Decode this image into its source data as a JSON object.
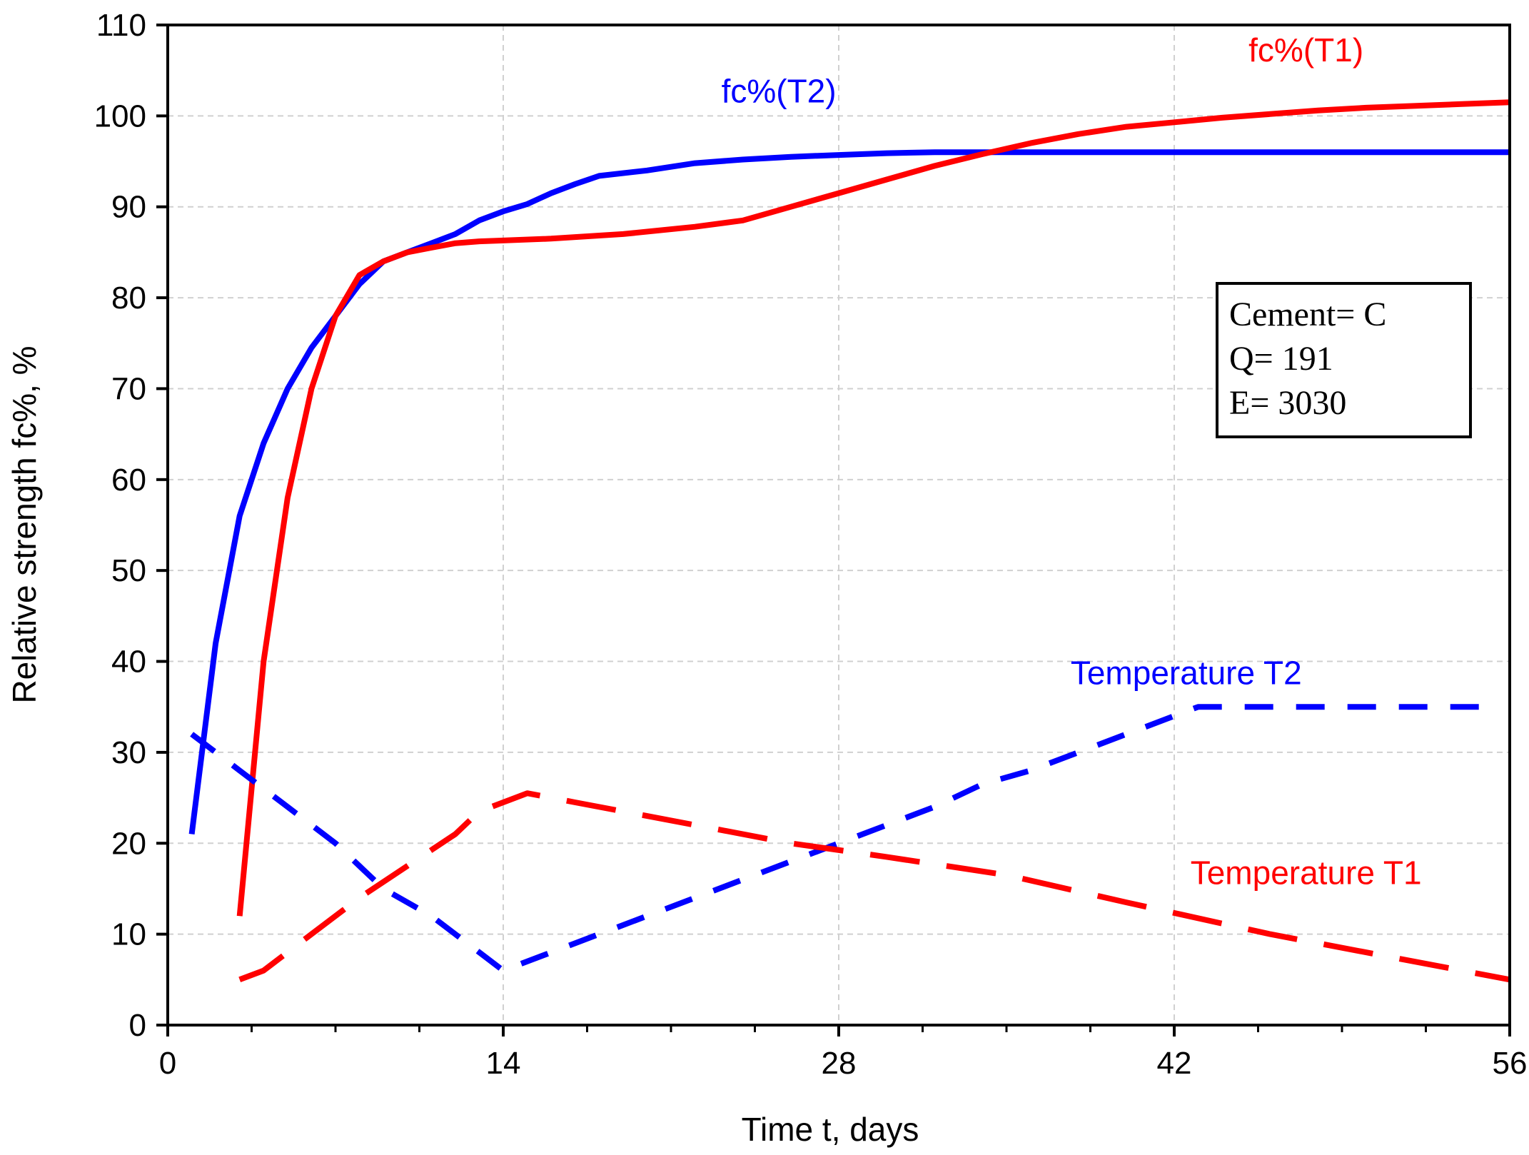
{
  "chart_data": {
    "type": "line",
    "title": "",
    "xlabel": "Time t, days",
    "ylabel": "Relative strength fc%, %",
    "xlim": [
      0,
      56
    ],
    "ylim": [
      0,
      110
    ],
    "x_ticks": [
      0,
      14,
      28,
      42,
      56
    ],
    "x_minor_step": 3.5,
    "y_ticks": [
      0,
      10,
      20,
      30,
      40,
      50,
      60,
      70,
      80,
      90,
      100,
      110
    ],
    "grid": true,
    "colors": {
      "blue": "#0000ff",
      "red": "#ff0000",
      "grid": "#d0d0d0",
      "axis": "#000000"
    },
    "series": [
      {
        "name": "fc%(T2)",
        "color": "#0000ff",
        "style": "solid",
        "x": [
          1,
          2,
          3,
          4,
          5,
          6,
          7,
          8,
          9,
          10,
          11,
          12,
          13,
          14,
          15,
          16,
          17,
          18,
          20,
          22,
          24,
          26,
          28,
          30,
          32,
          35,
          38,
          42,
          46,
          50,
          56
        ],
        "y": [
          21,
          42,
          56,
          64,
          70,
          74.5,
          78,
          81.5,
          84,
          85,
          86,
          87,
          88.5,
          89.5,
          90.3,
          91.5,
          92.5,
          93.4,
          94,
          94.8,
          95.2,
          95.5,
          95.7,
          95.9,
          96,
          96,
          96,
          96,
          96,
          96,
          96
        ]
      },
      {
        "name": "fc%(T1)",
        "color": "#ff0000",
        "style": "solid",
        "x": [
          3,
          4,
          5,
          6,
          7,
          8,
          9,
          10,
          11,
          12,
          13,
          14,
          16,
          19,
          22,
          24,
          26,
          28,
          30,
          32,
          34,
          36,
          38,
          40,
          42,
          44,
          46,
          48,
          50,
          52,
          54,
          56
        ],
        "y": [
          12,
          40,
          58,
          70,
          78,
          82.5,
          84,
          85,
          85.5,
          86,
          86.2,
          86.3,
          86.5,
          87,
          87.8,
          88.5,
          90,
          91.5,
          93,
          94.5,
          95.8,
          97,
          98,
          98.8,
          99.3,
          99.8,
          100.2,
          100.6,
          100.9,
          101.1,
          101.3,
          101.5
        ]
      },
      {
        "name": "Temperature T2",
        "color": "#0000ff",
        "style": "dashed",
        "x": [
          1,
          3,
          5,
          7,
          9,
          11,
          13,
          14,
          16,
          18,
          20,
          22,
          24,
          26,
          28,
          30,
          32,
          34,
          36,
          38,
          40,
          42,
          43,
          44,
          46,
          50,
          53,
          55
        ],
        "y": [
          32,
          28,
          24,
          20,
          15,
          12,
          8,
          6,
          8,
          10,
          12,
          14,
          16,
          18,
          20,
          22,
          24,
          26.5,
          28,
          30,
          32,
          34,
          35,
          35,
          35,
          35,
          35,
          35
        ]
      },
      {
        "name": "Temperature T1",
        "color": "#ff0000",
        "style": "dashed",
        "x": [
          3,
          4,
          6,
          8,
          10,
          12,
          13,
          15,
          17,
          19,
          22,
          26,
          30,
          35,
          40,
          46,
          50,
          54,
          56
        ],
        "y": [
          5,
          6,
          10,
          14,
          17.5,
          21,
          23.5,
          25.5,
          24.5,
          23.5,
          22,
          20,
          18.5,
          16.5,
          13.5,
          10,
          8,
          6,
          5
        ]
      }
    ],
    "annotations": [
      {
        "text": "fc%(T2)",
        "series": "fc%(T2)",
        "x": 25.5,
        "y": 101.5
      },
      {
        "text": "fc%(T1)",
        "series": "fc%(T1)",
        "x": 47.5,
        "y": 106
      },
      {
        "text": "Temperature T2",
        "series": "Temperature T2",
        "x": 42.5,
        "y": 37.5
      },
      {
        "text": "Temperature T1",
        "series": "Temperature T1",
        "x": 47.5,
        "y": 15.5
      }
    ],
    "info_box": {
      "lines": [
        "Cement= C",
        "Q= 191",
        "E= 3030"
      ],
      "placement": "right"
    }
  }
}
